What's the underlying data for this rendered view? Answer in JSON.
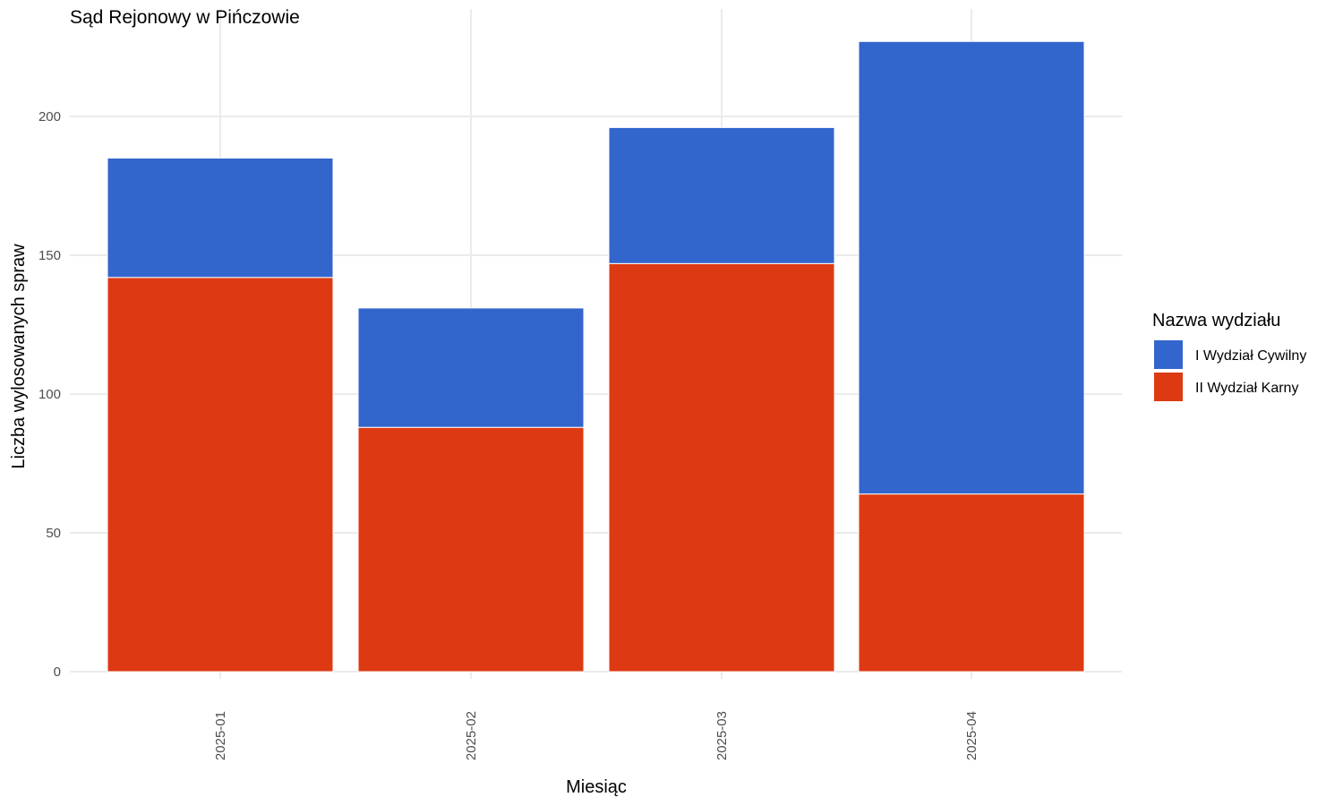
{
  "chart_data": {
    "type": "bar",
    "stacked": true,
    "title": "Sąd Rejonowy w Pińczowie",
    "xlabel": "Miesiąc",
    "ylabel": "Liczba wylosowanych spraw",
    "categories": [
      "2025-01",
      "2025-02",
      "2025-03",
      "2025-04"
    ],
    "series": [
      {
        "name": "II Wydział Karny",
        "color": "#DD3A13",
        "values": [
          142,
          88,
          147,
          64
        ]
      },
      {
        "name": "I Wydział Cywilny",
        "color": "#3366CC",
        "values": [
          43,
          43,
          49,
          163
        ]
      }
    ],
    "ylim": [
      0,
      227
    ],
    "yticks": [
      0,
      50,
      100,
      150,
      200
    ],
    "grid": true,
    "legend": {
      "title": "Nazwa wydziału",
      "position": "right",
      "order": [
        "I Wydział Cywilny",
        "II Wydział Karny"
      ]
    }
  }
}
